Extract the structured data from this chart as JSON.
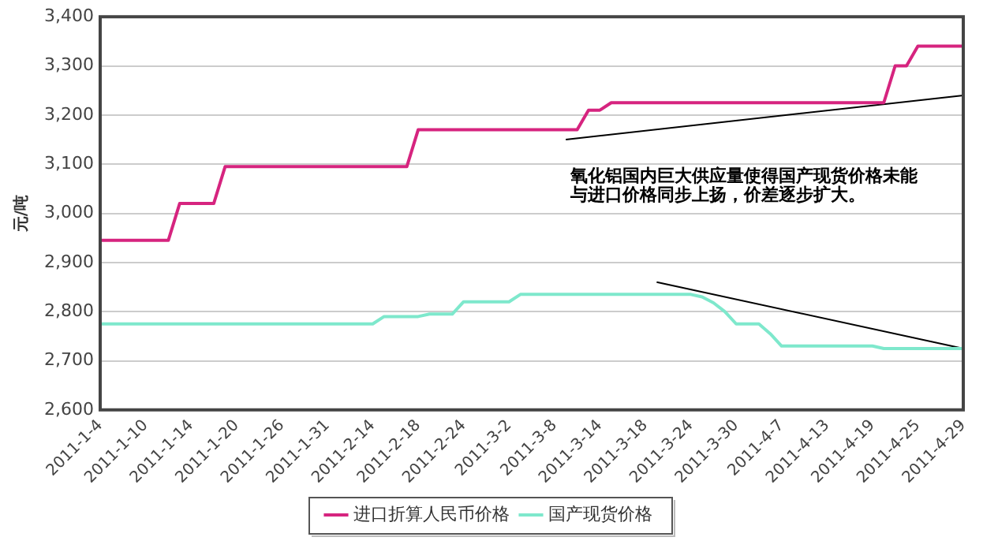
{
  "chart_data": {
    "type": "line",
    "ylabel": "元/吨",
    "categories": [
      "2011-1-4",
      null,
      null,
      null,
      "2011-1-10",
      null,
      null,
      null,
      "2011-1-14",
      null,
      null,
      null,
      "2011-1-20",
      null,
      null,
      null,
      "2011-1-26",
      null,
      null,
      null,
      "2011-1-31",
      null,
      null,
      null,
      "2011-2-14",
      null,
      null,
      null,
      "2011-2-18",
      null,
      null,
      null,
      "2011-2-24",
      null,
      null,
      null,
      "2011-3-2",
      null,
      null,
      null,
      "2011-3-8",
      null,
      null,
      null,
      "2011-3-14",
      null,
      null,
      null,
      "2011-3-18",
      null,
      null,
      null,
      "2011-3-24",
      null,
      null,
      null,
      "2011-3-30",
      null,
      null,
      null,
      "2011-4-7",
      null,
      null,
      null,
      "2011-4-13",
      null,
      null,
      null,
      "2011-4-19",
      null,
      null,
      null,
      "2011-4-25",
      null,
      null,
      null,
      "2011-4-29"
    ],
    "series": [
      {
        "name": "进口折算人民币价格",
        "color": "#d6247f",
        "values": [
          2945,
          2945,
          2945,
          2945,
          2945,
          2945,
          2945,
          3020,
          3020,
          3020,
          3020,
          3095,
          3095,
          3095,
          3095,
          3095,
          3095,
          3095,
          3095,
          3095,
          3095,
          3095,
          3095,
          3095,
          3095,
          3095,
          3095,
          3095,
          3170,
          3170,
          3170,
          3170,
          3170,
          3170,
          3170,
          3170,
          3170,
          3170,
          3170,
          3170,
          3170,
          3170,
          3170,
          3210,
          3210,
          3225,
          3225,
          3225,
          3225,
          3225,
          3225,
          3225,
          3225,
          3225,
          3225,
          3225,
          3225,
          3225,
          3225,
          3225,
          3225,
          3225,
          3225,
          3225,
          3225,
          3225,
          3225,
          3225,
          3225,
          3225,
          3300,
          3300,
          3340,
          3340,
          3340,
          3340,
          3340
        ]
      },
      {
        "name": "国产现货价格",
        "color": "#7ee8cc",
        "values": [
          2775,
          2775,
          2775,
          2775,
          2775,
          2775,
          2775,
          2775,
          2775,
          2775,
          2775,
          2775,
          2775,
          2775,
          2775,
          2775,
          2775,
          2775,
          2775,
          2775,
          2775,
          2775,
          2775,
          2775,
          2775,
          2790,
          2790,
          2790,
          2790,
          2795,
          2795,
          2795,
          2820,
          2820,
          2820,
          2820,
          2820,
          2835,
          2835,
          2835,
          2835,
          2835,
          2835,
          2835,
          2835,
          2835,
          2835,
          2835,
          2835,
          2835,
          2835,
          2835,
          2835,
          2830,
          2818,
          2800,
          2775,
          2775,
          2775,
          2755,
          2730,
          2730,
          2730,
          2730,
          2730,
          2730,
          2730,
          2730,
          2730,
          2725,
          2725,
          2725,
          2725,
          2725,
          2725,
          2725,
          2725
        ]
      },
      {
        "type": "line",
        "color": "#000000",
        "values": [
          null,
          null,
          null,
          null,
          null,
          null,
          null,
          null,
          null,
          null,
          null,
          null,
          null,
          null,
          null,
          null,
          null,
          null,
          null,
          null,
          null,
          null,
          null,
          null,
          null,
          null,
          null,
          null,
          null,
          null,
          null,
          null,
          null,
          null,
          null,
          null,
          null,
          null,
          null,
          null,
          null,
          3150,
          null,
          null,
          null,
          null,
          null,
          null,
          null,
          null,
          null,
          null,
          null,
          null,
          null,
          null,
          null,
          null,
          null,
          null,
          null,
          null,
          null,
          null,
          null,
          null,
          null,
          null,
          null,
          null,
          null,
          null,
          null,
          null,
          null,
          null,
          3240
        ]
      },
      {
        "type": "line",
        "color": "#000000",
        "values": [
          null,
          null,
          null,
          null,
          null,
          null,
          null,
          null,
          null,
          null,
          null,
          null,
          null,
          null,
          null,
          null,
          null,
          null,
          null,
          null,
          null,
          null,
          null,
          null,
          null,
          null,
          null,
          null,
          null,
          null,
          null,
          null,
          null,
          null,
          null,
          null,
          null,
          null,
          null,
          null,
          null,
          null,
          null,
          null,
          null,
          null,
          null,
          null,
          null,
          2860,
          null,
          null,
          null,
          null,
          null,
          null,
          null,
          null,
          null,
          null,
          null,
          null,
          null,
          null,
          null,
          null,
          null,
          null,
          null,
          null,
          null,
          null,
          null,
          null,
          null,
          null,
          2725
        ]
      }
    ],
    "ylim": [
      2600,
      3400
    ],
    "yticks": [
      {
        "value": 2600,
        "label": "2,600"
      },
      {
        "value": 2700,
        "label": "2,700"
      },
      {
        "value": 2800,
        "label": "2,800"
      },
      {
        "value": 2900,
        "label": "2,900"
      },
      {
        "value": 3000,
        "label": "3,000"
      },
      {
        "value": 3100,
        "label": "3,100"
      },
      {
        "value": 3200,
        "label": "3,200"
      },
      {
        "value": 3300,
        "label": "3,300"
      },
      {
        "value": 3400,
        "label": "3,400"
      }
    ],
    "annotations": [
      "氧化铝国内巨大供应量使得国产现货价格未能与进口价格同步上扬，价差逐步扩大。"
    ],
    "grid": "y",
    "legend": "bottom",
    "marker": "none"
  }
}
